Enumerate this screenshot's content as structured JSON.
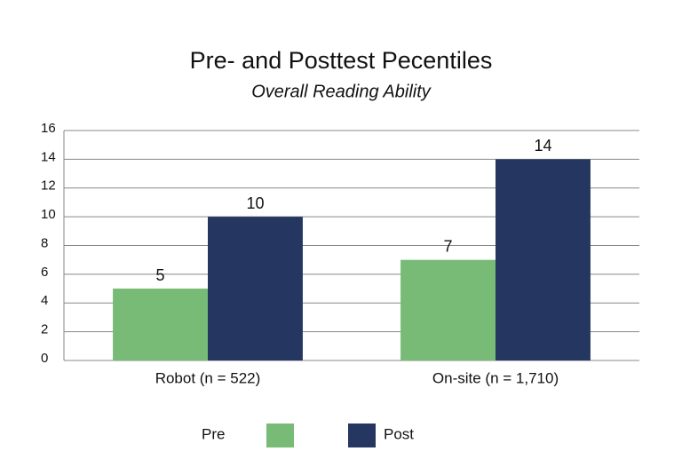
{
  "chart_data": {
    "type": "bar",
    "title": "Pre- and Posttest Pecentiles",
    "subtitle": "Overall Reading Ability",
    "categories": [
      "Robot (n = 522)",
      "On-site (n = 1,710)"
    ],
    "series": [
      {
        "name": "Pre",
        "color": "#77bb77",
        "values": [
          5,
          7
        ]
      },
      {
        "name": "Post",
        "color": "#253760",
        "values": [
          10,
          14
        ]
      }
    ],
    "ylim": [
      0,
      16
    ],
    "yticks": [
      0,
      2,
      4,
      6,
      8,
      10,
      12,
      14,
      16
    ],
    "grid": true,
    "legend": "bottom"
  }
}
